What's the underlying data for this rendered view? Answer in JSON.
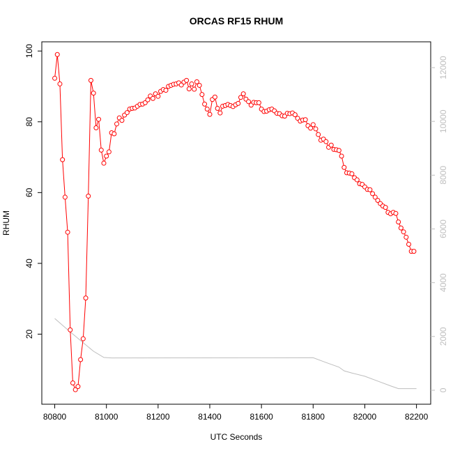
{
  "chart_data": {
    "type": "line",
    "title": "ORCAS RF15 RHUM",
    "xlabel": "UTC Seconds",
    "ylabel": "RHUM",
    "xlim": [
      80750,
      82255
    ],
    "xticks": [
      80800,
      81000,
      81200,
      81400,
      81600,
      81800,
      82000,
      82200
    ],
    "ylim": [
      0.2,
      102.6
    ],
    "yticks": [
      20,
      40,
      60,
      80,
      100
    ],
    "y2lim": [
      -520,
      12960
    ],
    "y2ticks": [
      0,
      2000,
      4000,
      6000,
      8000,
      10000,
      12000
    ],
    "series": [
      {
        "color": "#ff0000",
        "markers": true,
        "x": [
          80800,
          80810,
          80820,
          80830,
          80840,
          80850,
          80860,
          80870,
          80880,
          80890,
          80900,
          80910,
          80920,
          80930,
          80940,
          80950,
          80960,
          80970,
          80980,
          80990,
          81000,
          81010,
          81020,
          81030,
          81040,
          81050,
          81060,
          81070,
          81080,
          81090,
          81100,
          81110,
          81120,
          81130,
          81140,
          81150,
          81160,
          81170,
          81180,
          81190,
          81200,
          81210,
          81220,
          81230,
          81240,
          81250,
          81260,
          81270,
          81280,
          81290,
          81300,
          81310,
          81320,
          81330,
          81340,
          81350,
          81360,
          81370,
          81380,
          81390,
          81400,
          81410,
          81420,
          81430,
          81440,
          81450,
          81460,
          81470,
          81480,
          81490,
          81500,
          81510,
          81520,
          81530,
          81540,
          81550,
          81560,
          81570,
          81580,
          81590,
          81600,
          81610,
          81620,
          81630,
          81640,
          81650,
          81660,
          81670,
          81680,
          81690,
          81700,
          81710,
          81720,
          81730,
          81740,
          81750,
          81760,
          81770,
          81780,
          81790,
          81800,
          81810,
          81820,
          81830,
          81840,
          81850,
          81860,
          81870,
          81880,
          81890,
          81900,
          81910,
          81920,
          81930,
          81940,
          81950,
          81960,
          81970,
          81980,
          81990,
          82000,
          82010,
          82020,
          82030,
          82040,
          82050,
          82060,
          82070,
          82080,
          82090,
          82100,
          82110,
          82120,
          82130,
          82140,
          82150,
          82160,
          82170,
          82180,
          82190
        ],
        "values": [
          92.3,
          99,
          90.7,
          69.3,
          58.7,
          48.8,
          21.2,
          6.2,
          4.3,
          5.2,
          12.8,
          18.7,
          30.2,
          59,
          91.7,
          88.1,
          78.3,
          80.7,
          72,
          68.3,
          70.3,
          71.5,
          76.9,
          76.6,
          79.4,
          81.1,
          80.4,
          81.9,
          82.6,
          83.6,
          83.8,
          83.9,
          84.4,
          84.9,
          85,
          85.4,
          86.2,
          87.3,
          86.6,
          87.9,
          87.2,
          88.6,
          89.1,
          88.9,
          90,
          90.3,
          90.6,
          90.7,
          91,
          90.4,
          91.2,
          91.7,
          89.3,
          90.7,
          89.2,
          91.3,
          90.3,
          87.7,
          85,
          83.6,
          82.1,
          86.3,
          87,
          83.8,
          82.5,
          84.4,
          84.6,
          84.9,
          84.6,
          84.3,
          84.8,
          85.2,
          86.9,
          87.9,
          86.4,
          85.7,
          84.7,
          85.5,
          85.4,
          85.4,
          83.6,
          82.9,
          83,
          83.4,
          83.6,
          83.1,
          82.4,
          82.3,
          81.7,
          81.6,
          82.4,
          82.3,
          82.5,
          82,
          81,
          80.2,
          80.5,
          80.6,
          78.9,
          78.2,
          79.2,
          78,
          76.4,
          74.8,
          75.1,
          74.4,
          72.8,
          73.4,
          72.2,
          72.1,
          71.9,
          70.3,
          67.1,
          65.6,
          65.5,
          65.3,
          64.2,
          63.6,
          62.5,
          62.3,
          61.6,
          60.9,
          60.8,
          59.7,
          58.7,
          57.8,
          56.9,
          56.2,
          55.8,
          54.4,
          54,
          54.4,
          54.1,
          51.7,
          50,
          48.9,
          47.4,
          45.4,
          43.4,
          43.4
        ]
      },
      {
        "color": "#bebebe",
        "axis": "y2",
        "markers": false,
        "x": [
          80800,
          80850,
          80900,
          80950,
          80990,
          81020,
          81800,
          81850,
          81900,
          81920,
          81950,
          82000,
          82050,
          82100,
          82130,
          82200
        ],
        "values": [
          2670,
          2250,
          1850,
          1450,
          1220,
          1200,
          1210,
          1030,
          860,
          720,
          640,
          520,
          340,
          160,
          60,
          60
        ]
      }
    ]
  }
}
